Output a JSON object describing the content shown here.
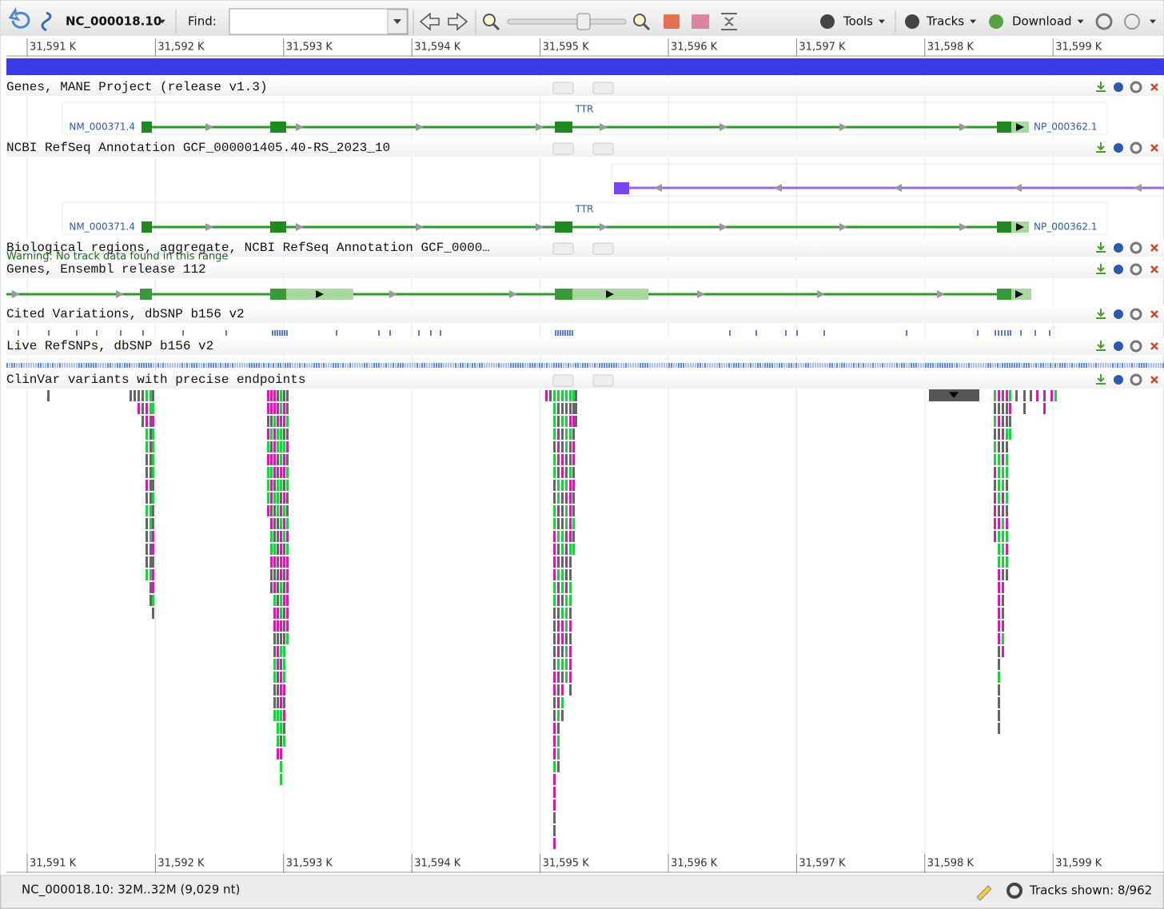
{
  "toolbar": {
    "sequence": "NC_000018.10",
    "find_label": "Find:",
    "menus": [
      "Tools",
      "Tracks",
      "Download"
    ]
  },
  "ruler": {
    "labels": [
      "31,591 K",
      "31,592 K",
      "31,593 K",
      "31,594 K",
      "31,595 K",
      "31,596 K",
      "31,597 K",
      "31,598 K",
      "31,599 K"
    ]
  },
  "tracks": [
    {
      "title": "Genes, MANE Project (release v1.3)",
      "gene": "TTR",
      "transcript": "NM_000371.4",
      "protein": "NP_000362.1"
    },
    {
      "title": "NCBI RefSeq Annotation GCF_000001405.40-RS_2023_10",
      "gene": "TTR",
      "transcript": "NM_000371.4",
      "protein": "NP_000362.1"
    },
    {
      "title": "Biological regions, aggregate, NCBI RefSeq Annotation GCF_0000…",
      "message": "Warning: No track data found in this range"
    },
    {
      "title": "Genes, Ensembl release 112"
    },
    {
      "title": "Cited Variations, dbSNP b156 v2"
    },
    {
      "title": "Live RefSNPs, dbSNP b156 v2"
    },
    {
      "title": "ClinVar variants with precise endpoints"
    }
  ],
  "status": {
    "location": "NC_000018.10: 32M..32M (9,029 nt)",
    "tracks_shown": "Tracks shown: 8/962"
  }
}
